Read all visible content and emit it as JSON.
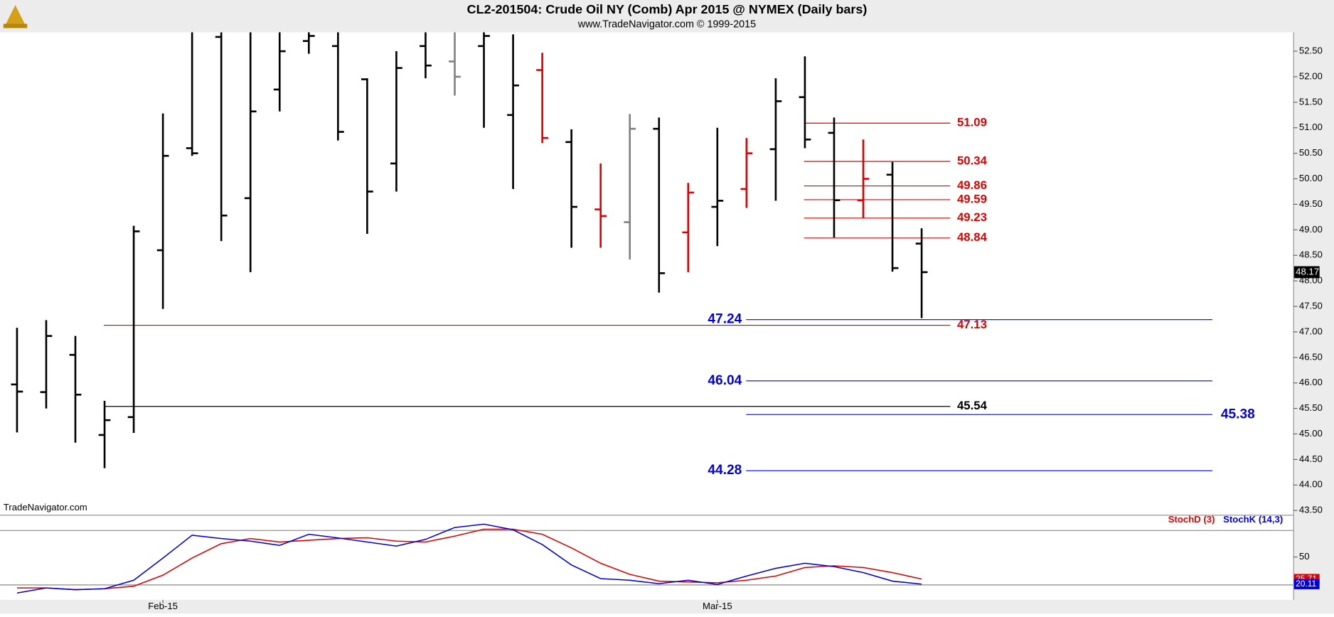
{
  "chart_data": [
    {
      "type": "ohlc",
      "title": "CL2-201504:  Crude Oil NY (Comb) Apr 2015 @ NYMEX  (Daily bars)",
      "subtitle": "www.TradeNavigator.com © 1999-2015",
      "watermark": "TradeNavigator.com",
      "categories": [
        null,
        null,
        null,
        null,
        null,
        "Feb-15",
        null,
        null,
        null,
        null,
        null,
        null,
        null,
        null,
        null,
        null,
        null,
        null,
        null,
        null,
        null,
        null,
        null,
        null,
        "Mar-15",
        null,
        null,
        null,
        null,
        null,
        null,
        null
      ],
      "open": [
        45.97,
        45.82,
        46.55,
        44.98,
        45.33,
        48.6,
        50.6,
        52.78,
        49.62,
        51.75,
        52.7,
        52.6,
        51.95,
        50.3,
        52.6,
        52.3,
        52.6,
        51.25,
        52.13,
        50.72,
        49.4,
        49.15,
        50.98,
        48.95,
        49.45,
        49.8,
        50.58,
        51.6,
        50.9,
        49.58,
        50.08,
        48.73
      ],
      "high": [
        47.08,
        47.23,
        46.92,
        45.65,
        49.08,
        51.28,
        52.95,
        52.95,
        52.95,
        52.95,
        52.95,
        52.95,
        51.97,
        52.5,
        52.95,
        52.95,
        52.95,
        52.83,
        52.47,
        50.97,
        50.3,
        51.27,
        51.2,
        49.92,
        51.0,
        50.8,
        51.97,
        52.4,
        51.2,
        50.77,
        50.33,
        49.03
      ],
      "low": [
        45.03,
        45.5,
        44.83,
        44.33,
        45.02,
        47.45,
        50.45,
        48.78,
        48.17,
        51.32,
        52.45,
        50.75,
        48.92,
        49.75,
        51.97,
        51.63,
        51.0,
        49.8,
        50.7,
        48.65,
        48.65,
        48.42,
        47.77,
        48.17,
        48.68,
        49.43,
        49.57,
        50.6,
        48.85,
        49.23,
        48.18,
        47.27
      ],
      "close": [
        45.83,
        46.92,
        45.77,
        45.27,
        48.97,
        50.45,
        50.5,
        49.28,
        51.32,
        52.5,
        52.8,
        50.92,
        49.75,
        52.17,
        52.22,
        52.0,
        52.8,
        51.83,
        50.8,
        49.45,
        49.27,
        50.98,
        48.15,
        49.73,
        49.57,
        50.5,
        51.52,
        50.77,
        49.58,
        50.0,
        48.25,
        48.17
      ],
      "colors": [
        "#000000",
        "#000000",
        "#000000",
        "#000000",
        "#000000",
        "#000000",
        "#000000",
        "#000000",
        "#000000",
        "#000000",
        "#000000",
        "#000000",
        "#000000",
        "#000000",
        "#000000",
        "#808080",
        "#000000",
        "#000000",
        "#e00000",
        "#000000",
        "#e00000",
        "#808080",
        "#000000",
        "#e00000",
        "#000000",
        "#e00000",
        "#000000",
        "#000000",
        "#000000",
        "#e00000",
        "#000000",
        "#000000"
      ],
      "ylim": [
        43.4,
        52.87
      ],
      "yticks": [
        {
          "value": 43.5,
          "label": "43.50"
        },
        {
          "value": 44,
          "label": "44.00"
        },
        {
          "value": 44.5,
          "label": "44.50"
        },
        {
          "value": 45,
          "label": "45.00"
        },
        {
          "value": 45.5,
          "label": "45.50"
        },
        {
          "value": 46,
          "label": "46.00"
        },
        {
          "value": 46.5,
          "label": "46.50"
        },
        {
          "value": 47,
          "label": "47.00"
        },
        {
          "value": 47.5,
          "label": "47.50"
        },
        {
          "value": 48,
          "label": "48.00"
        },
        {
          "value": 48.5,
          "label": "48.50"
        },
        {
          "value": 49,
          "label": "49.00"
        },
        {
          "value": 49.5,
          "label": "49.50"
        },
        {
          "value": 50,
          "label": "50.00"
        },
        {
          "value": 50.5,
          "label": "50.50"
        },
        {
          "value": 51,
          "label": "51.00"
        },
        {
          "value": 51.5,
          "label": "51.50"
        },
        {
          "value": 52,
          "label": "52.00"
        },
        {
          "value": 52.5,
          "label": "52.50"
        }
      ],
      "last_price": 48.17,
      "levels": [
        {
          "value": 51.09,
          "color": "#e00000"
        },
        {
          "value": 50.34,
          "color": "#e00000"
        },
        {
          "value": 49.86,
          "color": "#e00000"
        },
        {
          "value": 49.59,
          "color": "#e00000"
        },
        {
          "value": 49.23,
          "color": "#e00000"
        },
        {
          "value": 48.84,
          "color": "#e00000"
        },
        {
          "value": 47.13,
          "color": "#e00000"
        },
        {
          "value": 45.54,
          "color": "#000000"
        },
        {
          "value": 47.24,
          "color": "#0000e0"
        },
        {
          "value": 46.04,
          "color": "#0000e0"
        },
        {
          "value": 44.28,
          "color": "#0000e0"
        },
        {
          "value": 45.38,
          "color": "#0000e0"
        }
      ]
    },
    {
      "type": "line",
      "ylim": [
        0,
        100
      ],
      "yticks": [
        50
      ],
      "series": [
        {
          "name": "StochD (3)",
          "color": "#e00000",
          "values": [
            15.9,
            15.9,
            14,
            15,
            17.8,
            30,
            48.8,
            64.7,
            70.3,
            66.5,
            68.4,
            70.3,
            71.2,
            67.5,
            66.5,
            73,
            80.6,
            80.6,
            75,
            60,
            43.1,
            30.9,
            23.4,
            22.5,
            21.6,
            24.4,
            29,
            38.4,
            40.3,
            38.4,
            32.8,
            25.71
          ]
        },
        {
          "name": "StochK (14,3)",
          "color": "#0000e0",
          "values": [
            10.3,
            15.9,
            14,
            15,
            24.4,
            48.8,
            74,
            70.3,
            67.5,
            62.8,
            75,
            71,
            66.5,
            62,
            69.4,
            82.5,
            86.2,
            80,
            63.7,
            41.2,
            26.2,
            24.4,
            20.6,
            24.4,
            19.7,
            29,
            37.5,
            43.1,
            39.4,
            32.8,
            23.4,
            20.11
          ]
        }
      ]
    }
  ]
}
